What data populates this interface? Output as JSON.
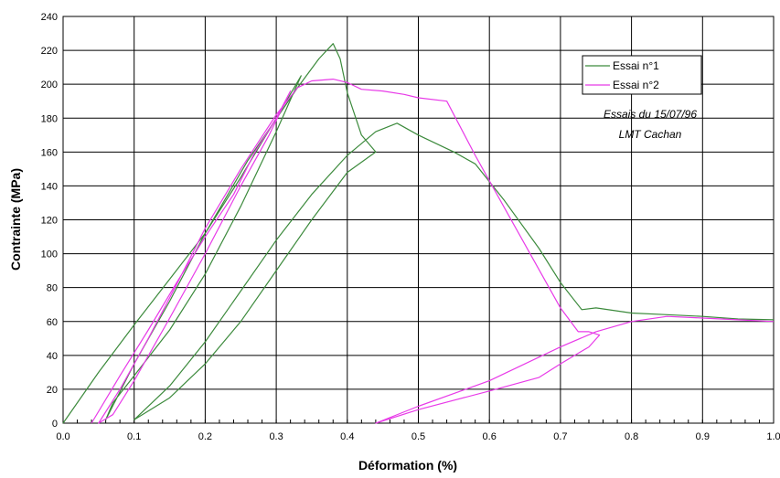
{
  "chart_data": {
    "type": "line",
    "title": "",
    "xlabel": "Déformation (%)",
    "ylabel": "Contrainte (MPa)",
    "xlim": [
      0,
      1.0
    ],
    "ylim": [
      0,
      240
    ],
    "xticks": [
      0,
      0.1,
      0.2,
      0.3,
      0.4,
      0.5,
      0.6,
      0.7,
      0.8,
      0.9,
      1.0
    ],
    "xtick_labels": [
      "0.0",
      "0.1",
      "0.2",
      "0.3",
      "0.4",
      "0.5",
      "0.6",
      "0.7",
      "0.8",
      "0.9",
      "1.0"
    ],
    "yticks": [
      0,
      20,
      40,
      60,
      80,
      100,
      120,
      140,
      160,
      180,
      200,
      220,
      240
    ],
    "ytick_labels": [
      "0",
      "20",
      "40",
      "60",
      "80",
      "100",
      "120",
      "140",
      "160",
      "180",
      "200",
      "220",
      "240"
    ],
    "grid": true,
    "legend_position": "top-right",
    "annotations": [
      "Essais du 15/07/96",
      "LMT Cachan"
    ],
    "series": [
      {
        "name": "Essai n°1",
        "color": "#3c8a3c",
        "points": [
          [
            0.0,
            0
          ],
          [
            0.05,
            30
          ],
          [
            0.1,
            58
          ],
          [
            0.15,
            85
          ],
          [
            0.2,
            112
          ],
          [
            0.25,
            145
          ],
          [
            0.3,
            180
          ],
          [
            0.335,
            205
          ],
          [
            0.3,
            172
          ],
          [
            0.25,
            128
          ],
          [
            0.2,
            88
          ],
          [
            0.15,
            55
          ],
          [
            0.1,
            28
          ],
          [
            0.07,
            12
          ],
          [
            0.06,
            2
          ],
          [
            0.1,
            35
          ],
          [
            0.15,
            72
          ],
          [
            0.2,
            112
          ],
          [
            0.26,
            155
          ],
          [
            0.33,
            198
          ],
          [
            0.36,
            215
          ],
          [
            0.38,
            224
          ],
          [
            0.39,
            215
          ],
          [
            0.4,
            195
          ],
          [
            0.42,
            170
          ],
          [
            0.44,
            160
          ],
          [
            0.4,
            148
          ],
          [
            0.35,
            120
          ],
          [
            0.3,
            90
          ],
          [
            0.25,
            60
          ],
          [
            0.2,
            35
          ],
          [
            0.15,
            15
          ],
          [
            0.1,
            2
          ],
          [
            0.15,
            22
          ],
          [
            0.2,
            48
          ],
          [
            0.25,
            78
          ],
          [
            0.3,
            108
          ],
          [
            0.35,
            135
          ],
          [
            0.4,
            158
          ],
          [
            0.44,
            172
          ],
          [
            0.47,
            177
          ],
          [
            0.5,
            170
          ],
          [
            0.55,
            160
          ],
          [
            0.58,
            153
          ],
          [
            0.62,
            132
          ],
          [
            0.67,
            103
          ],
          [
            0.7,
            83
          ],
          [
            0.73,
            67
          ],
          [
            0.75,
            68
          ],
          [
            0.8,
            65
          ],
          [
            0.85,
            64
          ],
          [
            0.9,
            63
          ],
          [
            0.95,
            61.5
          ],
          [
            1.0,
            61
          ]
        ]
      },
      {
        "name": "Essai n°2",
        "color": "#e83ae8",
        "points": [
          [
            0.04,
            0
          ],
          [
            0.08,
            28
          ],
          [
            0.12,
            55
          ],
          [
            0.16,
            83
          ],
          [
            0.2,
            110
          ],
          [
            0.24,
            135
          ],
          [
            0.27,
            160
          ],
          [
            0.3,
            180
          ],
          [
            0.32,
            196
          ],
          [
            0.29,
            170
          ],
          [
            0.25,
            140
          ],
          [
            0.2,
            100
          ],
          [
            0.15,
            62
          ],
          [
            0.1,
            25
          ],
          [
            0.07,
            5
          ],
          [
            0.05,
            0
          ],
          [
            0.08,
            20
          ],
          [
            0.12,
            50
          ],
          [
            0.16,
            82
          ],
          [
            0.2,
            115
          ],
          [
            0.25,
            150
          ],
          [
            0.3,
            182
          ],
          [
            0.33,
            198
          ],
          [
            0.35,
            202
          ],
          [
            0.38,
            203
          ],
          [
            0.4,
            201
          ],
          [
            0.42,
            197
          ],
          [
            0.45,
            196
          ],
          [
            0.48,
            194
          ],
          [
            0.5,
            192
          ],
          [
            0.54,
            190
          ],
          [
            0.58,
            158
          ],
          [
            0.62,
            128
          ],
          [
            0.66,
            98
          ],
          [
            0.7,
            68
          ],
          [
            0.725,
            54
          ],
          [
            0.74,
            54
          ],
          [
            0.755,
            52
          ],
          [
            0.74,
            45
          ],
          [
            0.7,
            35
          ],
          [
            0.67,
            27
          ],
          [
            0.6,
            19
          ],
          [
            0.5,
            8
          ],
          [
            0.44,
            0
          ],
          [
            0.5,
            10
          ],
          [
            0.6,
            25
          ],
          [
            0.7,
            45
          ],
          [
            0.75,
            54
          ],
          [
            0.8,
            60
          ],
          [
            0.85,
            63
          ],
          [
            0.9,
            62
          ],
          [
            0.95,
            61
          ],
          [
            1.0,
            60
          ]
        ]
      }
    ]
  }
}
